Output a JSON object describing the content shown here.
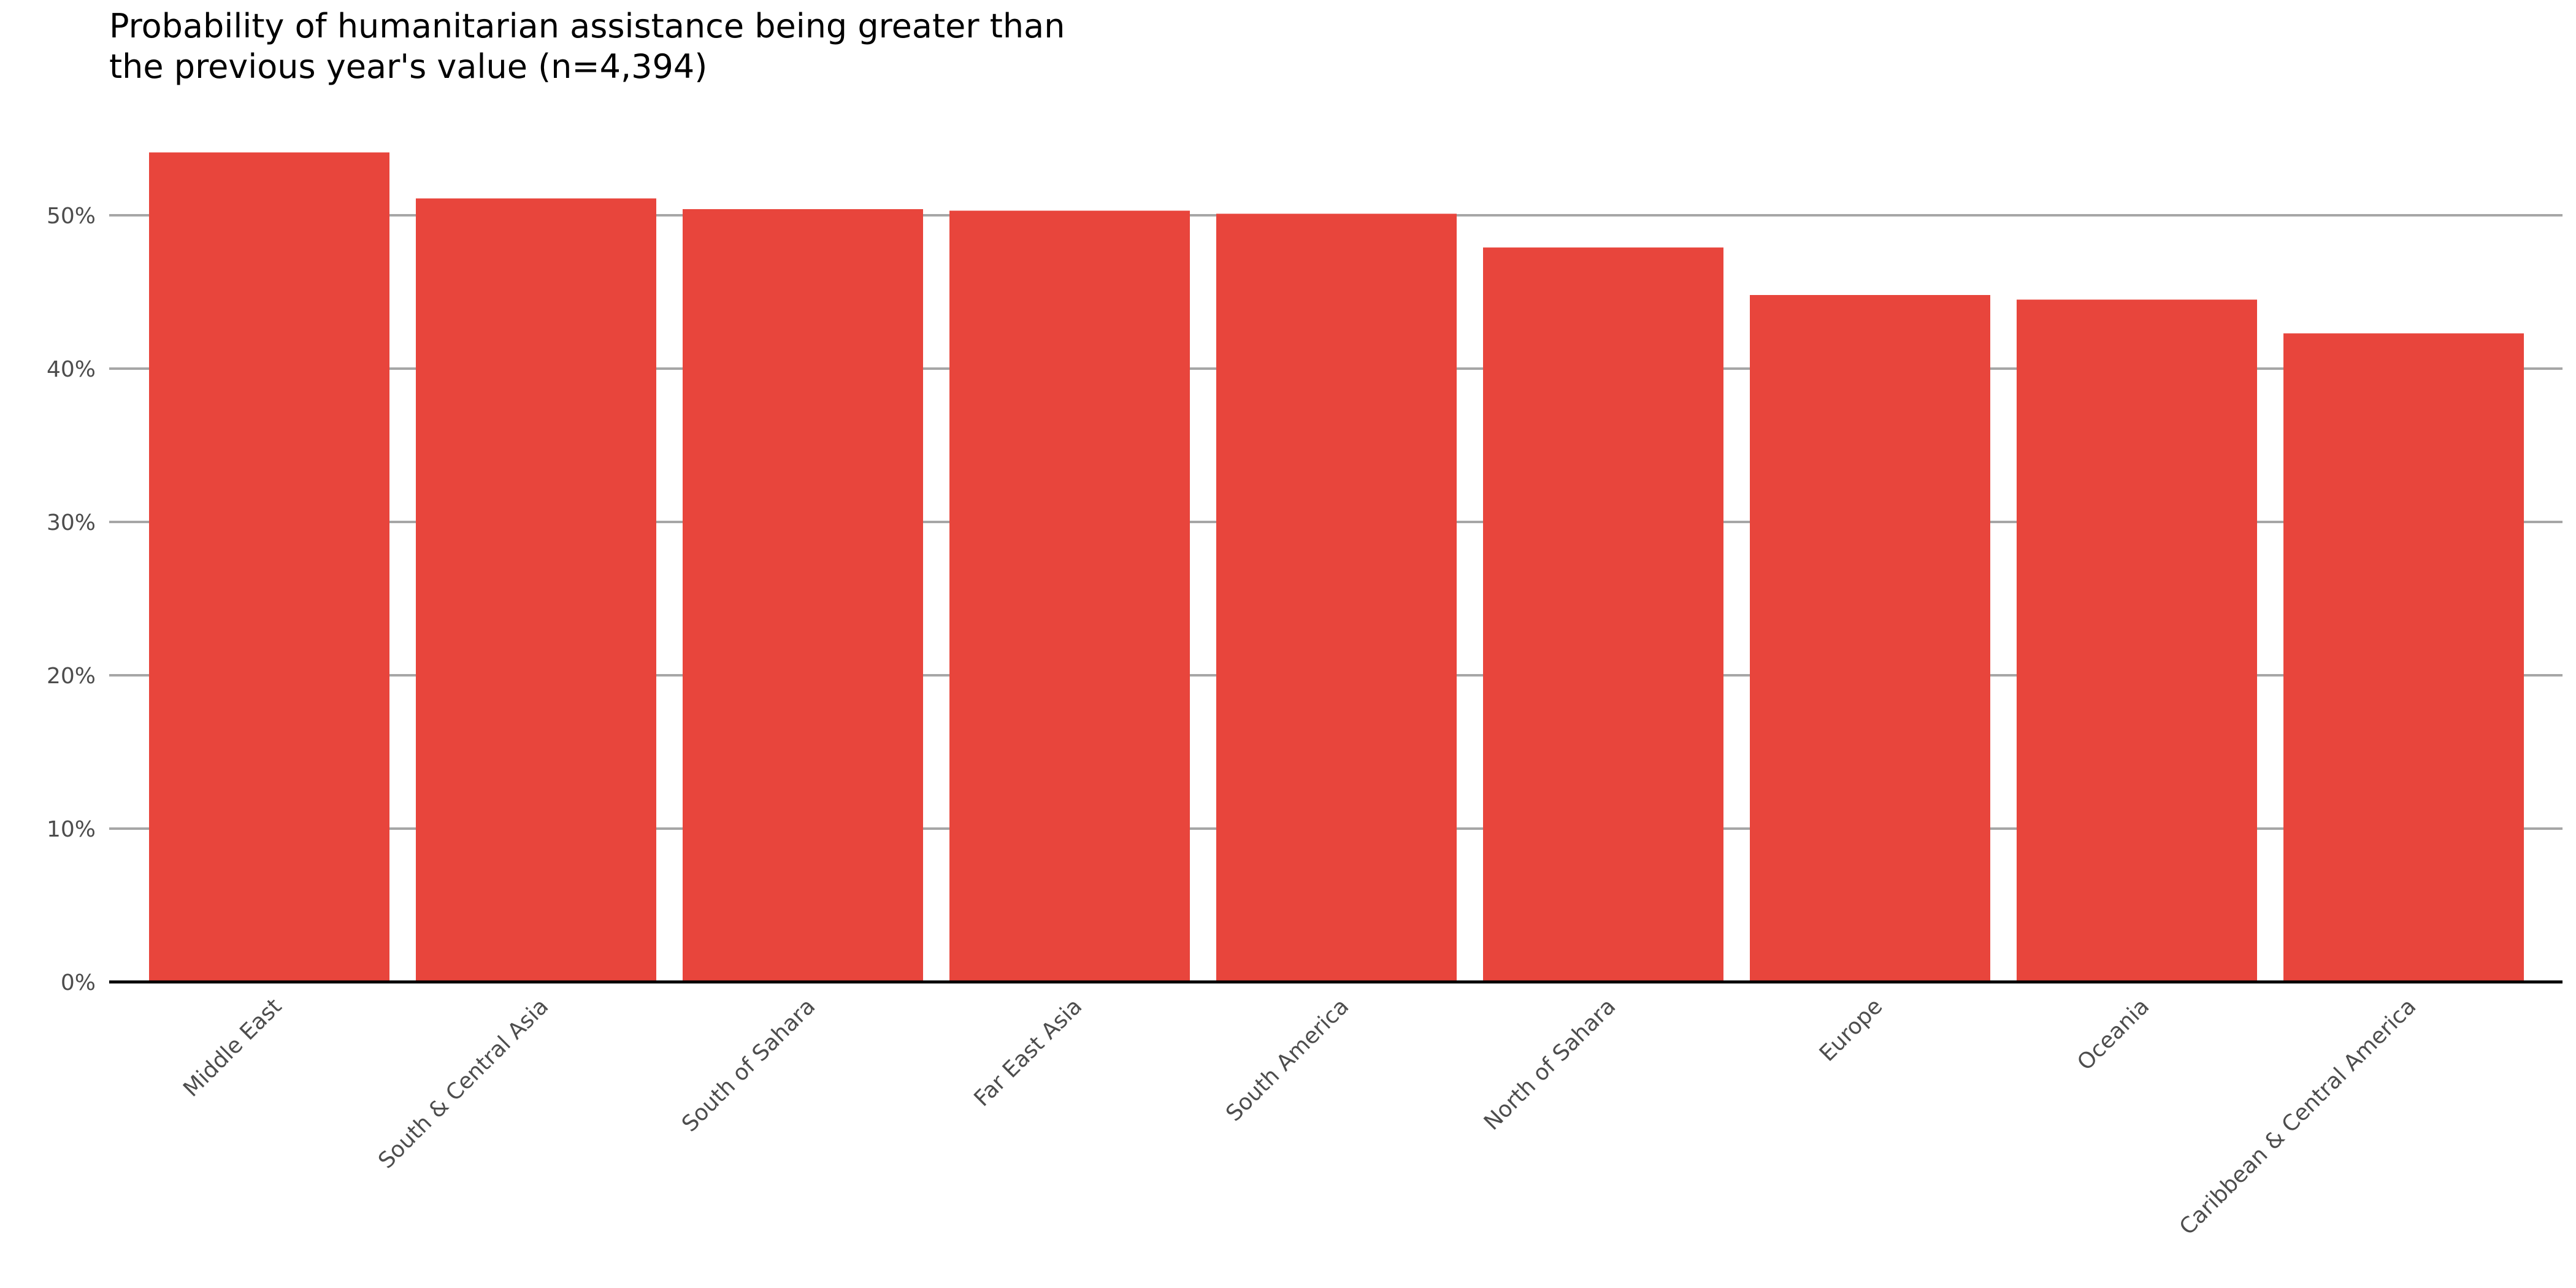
{
  "chart_data": {
    "type": "bar",
    "title_lines": [
      "Probability of humanitarian assistance being greater than",
      "the previous year's value (n=4,394)"
    ],
    "categories": [
      "Middle East",
      "South & Central Asia",
      "South of Sahara",
      "Far East Asia",
      "South America",
      "North of Sahara",
      "Europe",
      "Oceania",
      "Caribbean & Central America"
    ],
    "values": [
      54.1,
      51.1,
      50.4,
      50.3,
      50.1,
      47.9,
      44.8,
      44.5,
      42.3
    ],
    "value_unit": "%",
    "ylim": [
      0,
      55
    ],
    "yticks": [
      0,
      10,
      20,
      30,
      40,
      50
    ],
    "ytick_labels": [
      "0%",
      "10%",
      "20%",
      "30%",
      "40%",
      "50%"
    ],
    "xlabel": "",
    "ylabel": "",
    "grid": "horizontal",
    "legend": "none",
    "bar_color": "#e8453c",
    "grid_color": "#a6a6a6",
    "axis_color": "#000000"
  }
}
